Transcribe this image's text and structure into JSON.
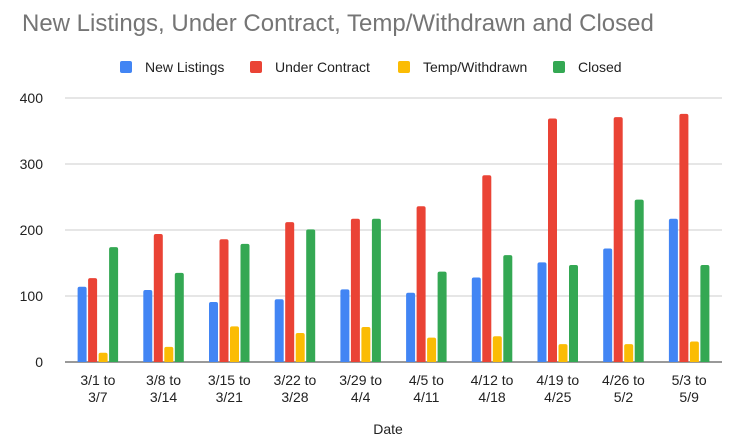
{
  "chart_data": {
    "type": "bar",
    "title": "New Listings, Under Contract, Temp/Withdrawn and Closed",
    "xlabel": "Date",
    "ylabel": "",
    "ylim": [
      0,
      400
    ],
    "yticks": [
      0,
      100,
      200,
      300,
      400
    ],
    "grid": true,
    "legend_position": "top",
    "categories": [
      [
        "3/1 to",
        "3/7"
      ],
      [
        "3/8 to",
        "3/14"
      ],
      [
        "3/15 to",
        "3/21"
      ],
      [
        "3/22 to",
        "3/28"
      ],
      [
        "3/29 to",
        "4/4"
      ],
      [
        "4/5 to",
        "4/11"
      ],
      [
        "4/12 to",
        "4/18"
      ],
      [
        "4/19 to",
        "4/25"
      ],
      [
        "4/26 to",
        "5/2"
      ],
      [
        "5/3 to",
        "5/9"
      ]
    ],
    "series": [
      {
        "name": "New Listings",
        "color": "#4285f4",
        "values": [
          114,
          109,
          91,
          95,
          110,
          105,
          128,
          151,
          172,
          217
        ]
      },
      {
        "name": "Under Contract",
        "color": "#ea4335",
        "values": [
          127,
          194,
          186,
          212,
          217,
          236,
          283,
          369,
          371,
          376
        ]
      },
      {
        "name": "Temp/Withdrawn",
        "color": "#fbbc04",
        "values": [
          14,
          23,
          54,
          44,
          53,
          37,
          39,
          27,
          27,
          31
        ]
      },
      {
        "name": "Closed",
        "color": "#34a853",
        "values": [
          174,
          135,
          179,
          201,
          217,
          137,
          162,
          147,
          246,
          147
        ]
      }
    ]
  }
}
